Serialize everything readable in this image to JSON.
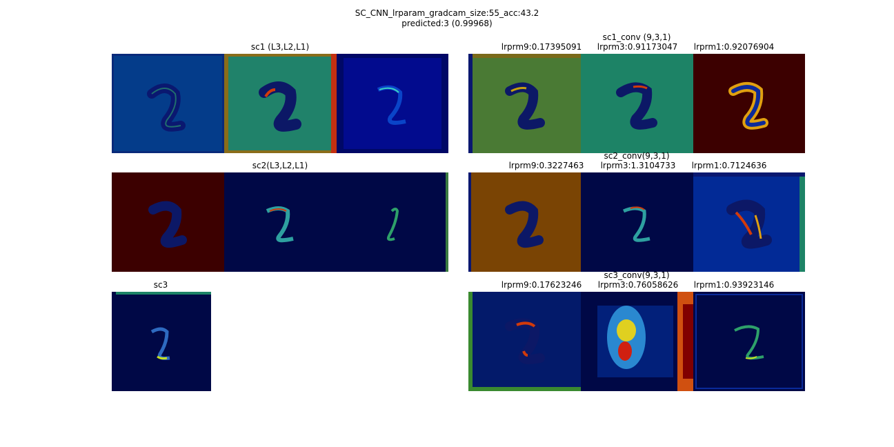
{
  "figure": {
    "title": "SC_CNN_lrparam_gradcam_size:55_acc:43.2",
    "subtitle": "predicted:3 (0.99968)"
  },
  "rows": [
    {
      "left": {
        "title": "sc1 (L3,L2,L1)"
      },
      "right": {
        "group_title": "sc1_conv (9,3,1)",
        "labels": [
          "lrprm9:0.17395091",
          "lrprm3:0.91173047",
          "lrprm1:0.92076904"
        ]
      }
    },
    {
      "left": {
        "title": "sc2(L3,L2,L1)"
      },
      "right": {
        "group_title": "sc2_conv(9,3,1)",
        "labels": [
          "lrprm9:0.3227463",
          "lrprm3:1.3104733",
          "lrprm1:0.7124636"
        ]
      }
    },
    {
      "left": {
        "title": "sc3"
      },
      "right": {
        "group_title": "sc3_conv(9,3,1)",
        "labels": [
          "lrprm9:0.17623246",
          "lrprm3:0.76058626",
          "lrprm1:0.93923146"
        ]
      }
    }
  ],
  "heatmap_colors": {
    "sc1_left": [
      "#043c8a",
      "#20826a",
      "#020b8e"
    ],
    "sc1_right": [
      "#4a7a34",
      "#1d8366",
      "#3c0000"
    ],
    "sc2_left": [
      "#3c0000",
      "#000846",
      "#000846"
    ],
    "sc2_right": [
      "#7a4404",
      "#000846",
      "#022a96"
    ],
    "sc3_left": [
      "#000846"
    ],
    "sc3_right": [
      "#031a6a",
      "#000846",
      "#000846"
    ]
  }
}
